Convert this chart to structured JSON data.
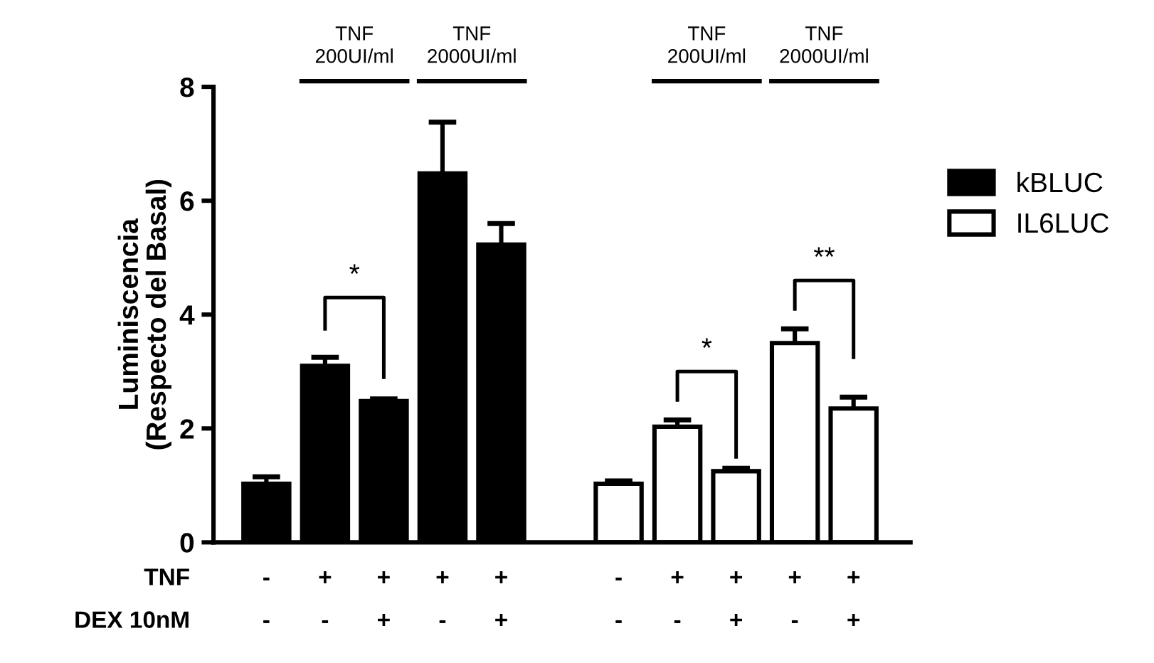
{
  "chart_data": {
    "type": "bar",
    "ylabel": "Luminiscencia\n(Respecto del Basal)",
    "categories": [
      "-\n-",
      "+\n-",
      "+\n+",
      "+\n-",
      "+\n+",
      null,
      "-\n-",
      "+\n-",
      "+\n+",
      "+\n-",
      "+\n+"
    ],
    "series": [
      {
        "name": "kBLUC",
        "color": "#000000",
        "values": [
          1.03,
          3.1,
          2.48,
          6.48,
          5.23,
          null,
          null,
          null,
          null,
          null,
          null
        ],
        "errors": [
          [
            1.03,
            1.15
          ],
          [
            3.1,
            3.25
          ],
          [
            2.48,
            2.52
          ],
          [
            6.48,
            7.38
          ],
          [
            5.23,
            5.6
          ],
          null,
          null,
          null,
          null,
          null,
          null
        ]
      },
      {
        "name": "IL6LUC",
        "color": "#ffffff",
        "values": [
          null,
          null,
          null,
          null,
          null,
          null,
          1.03,
          2.03,
          1.25,
          3.5,
          2.35
        ],
        "errors": [
          null,
          null,
          null,
          null,
          null,
          null,
          [
            1.03,
            1.08
          ],
          [
            2.03,
            2.15
          ],
          [
            1.25,
            1.3
          ],
          [
            3.5,
            3.75
          ],
          [
            2.35,
            2.55
          ]
        ]
      }
    ],
    "ylim": [
      0,
      8
    ],
    "yticks": [
      0,
      2,
      4,
      6,
      8
    ],
    "grid": false,
    "legend": "right",
    "annotations": [
      "TNF\n200UI/ml",
      "TNF\n2000UI/ml",
      "TNF\n200UI/ml",
      "TNF\n2000UI/ml",
      "*",
      "*",
      "**",
      "TNF",
      "DEX 10nM"
    ]
  }
}
